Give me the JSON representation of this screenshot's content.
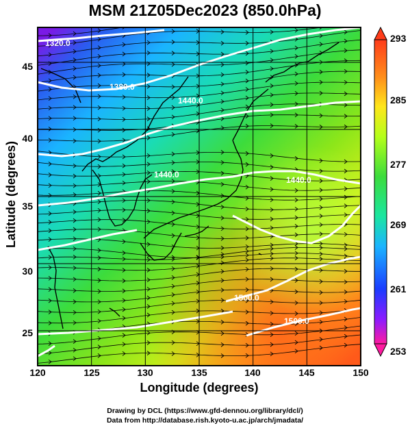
{
  "title": "MSM 21Z05Dec2023 (850.0hPa)",
  "axes": {
    "xlabel": "Longitude (degrees)",
    "ylabel": "Latitude (degrees)",
    "x_ticks": [
      "120",
      "125",
      "130",
      "135",
      "140",
      "145",
      "150"
    ],
    "y_ticks": [
      "45",
      "40",
      "35",
      "30",
      "25"
    ],
    "xlim": [
      120,
      150
    ],
    "ylim": [
      22.4,
      47.6
    ]
  },
  "colorbar": {
    "labels": [
      "293",
      "285",
      "277",
      "269",
      "261",
      "253"
    ],
    "range": [
      253,
      293
    ],
    "colors": [
      "#ff1aa0",
      "#8c1aff",
      "#1a3cff",
      "#1ab4ff",
      "#1ae6a0",
      "#3cdc3c",
      "#b4ff1a",
      "#ffe61a",
      "#ff8c1a",
      "#ff3c1a"
    ]
  },
  "contours": {
    "labels": [
      "1320.0",
      "1380.0",
      "1440.0",
      "1500.0",
      "1440.0",
      "1440.0",
      "1500.0"
    ],
    "color": "#ffffff"
  },
  "footer": {
    "line1": "Drawing by DCL (https://www.gfd-dennou.org/library/dcl/)",
    "line2": "Data from http://database.rish.kyoto-u.ac.jp/arch/jmadata/"
  }
}
